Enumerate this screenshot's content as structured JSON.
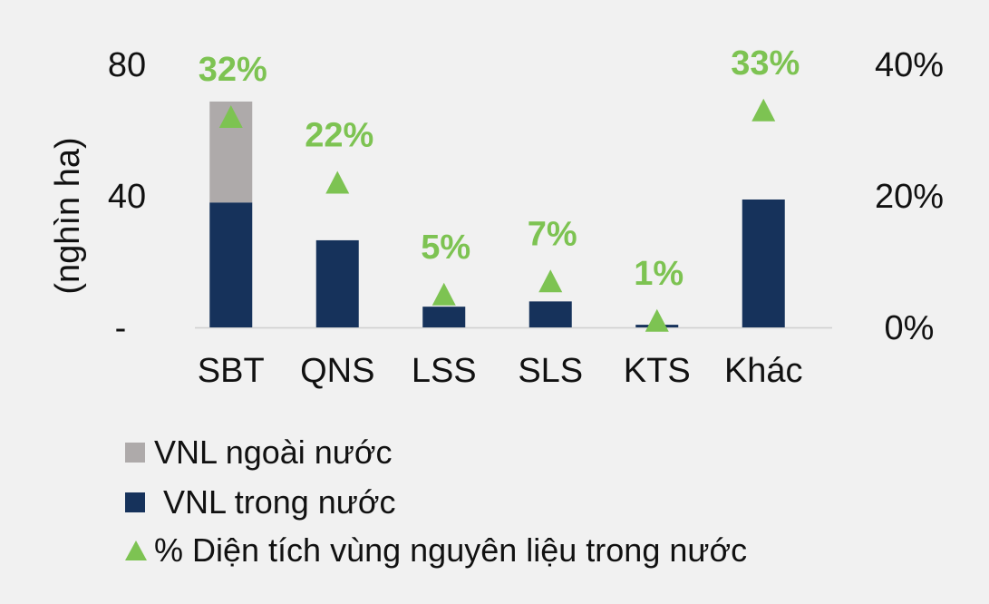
{
  "chart_data": {
    "type": "bar",
    "stacked": true,
    "categories": [
      "SBT",
      "QNS",
      "LSS",
      "SLS",
      "KTS",
      "Khác"
    ],
    "series": [
      {
        "name": "VNL trong nước",
        "type": "bar",
        "axis": "left",
        "color": "#16325b",
        "values": [
          38,
          26.5,
          6.3,
          7.9,
          0.8,
          38.9
        ]
      },
      {
        "name": "VNL ngoài nước",
        "type": "bar",
        "axis": "left",
        "color": "#aeaaaa",
        "values": [
          30.7,
          0,
          0,
          0,
          0,
          0
        ]
      },
      {
        "name": "% Diện tích vùng nguyên liệu trong nước",
        "type": "marker",
        "axis": "right",
        "color": "#7dc352",
        "values": [
          32,
          22,
          5,
          7,
          1,
          33
        ],
        "labels": [
          "32%",
          "22%",
          "5%",
          "7%",
          "1%",
          "33%"
        ]
      }
    ],
    "ylabel": "(nghìn ha)",
    "ylim": [
      0,
      80
    ],
    "yticks": [
      "-",
      "40",
      "80"
    ],
    "y2lim": [
      0,
      40
    ],
    "y2ticks": [
      "0%",
      "20%",
      "40%"
    ],
    "grid": false,
    "legend_placement": "bottom-left"
  },
  "legend": [
    {
      "label": "VNL ngoài nước",
      "color": "#aeaaaa",
      "shape": "square"
    },
    {
      "label": " VNL trong nước",
      "color": "#16325b",
      "shape": "square"
    },
    {
      "label": "% Diện tích vùng nguyên liệu trong nước",
      "color": "#7dc352",
      "shape": "triangle"
    }
  ]
}
